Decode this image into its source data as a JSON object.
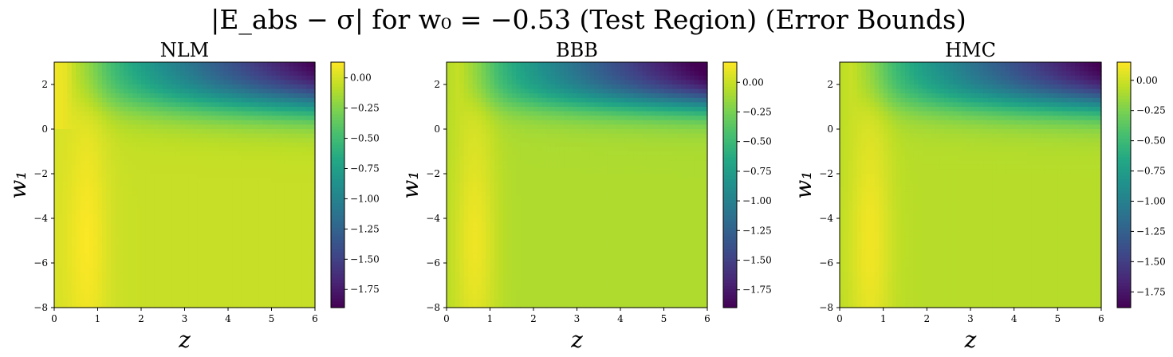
{
  "figure": {
    "suptitle": "|E_abs − σ| for w₀ = −0.53 (Test Region) (Error Bounds)"
  },
  "chart_data": [
    {
      "type": "heatmap",
      "title": "NLM",
      "xlabel": "z",
      "ylabel": "w₁",
      "xlim": [
        0,
        6
      ],
      "ylim": [
        -8,
        3
      ],
      "xticks": [
        0,
        1,
        2,
        3,
        4,
        5,
        6
      ],
      "yticks": [
        -8,
        -6,
        -4,
        -2,
        0,
        2
      ],
      "colorbar": {
        "range": [
          -1.9,
          0.13
        ],
        "ticks": [
          "0.00",
          "−0.25",
          "−0.50",
          "−0.75",
          "−1.00",
          "−1.25",
          "−1.50",
          "−1.75"
        ]
      },
      "colormap": "viridis",
      "model": {
        "base": -0.04,
        "hump_amp": 0.16,
        "hump_z": 0.75,
        "hump_sz": 0.5,
        "low_amp": 1.95,
        "low_z": 6.0,
        "low_w": 3.0,
        "low_rise": 0.55,
        "top_edge": 0.11,
        "floor": 0.0
      }
    },
    {
      "type": "heatmap",
      "title": "BBB",
      "xlabel": "z",
      "ylabel": "w₁",
      "xlim": [
        0,
        6
      ],
      "ylim": [
        -8,
        3
      ],
      "xticks": [
        0,
        1,
        2,
        3,
        4,
        5,
        6
      ],
      "yticks": [
        -8,
        -6,
        -4,
        -2,
        0,
        2
      ],
      "colorbar": {
        "range": [
          -1.9,
          0.17
        ],
        "ticks": [
          "0.00",
          "−0.25",
          "−0.50",
          "−0.75",
          "−1.00",
          "−1.25",
          "−1.50",
          "−1.75"
        ]
      },
      "colormap": "viridis",
      "model": {
        "base": -0.08,
        "hump_amp": 0.2,
        "hump_z": 0.65,
        "hump_sz": 0.5,
        "low_amp": 1.95,
        "low_z": 6.0,
        "low_w": 3.0,
        "low_rise": 0.45,
        "top_edge": 0.0,
        "floor": 0.0
      }
    },
    {
      "type": "heatmap",
      "title": "HMC",
      "xlabel": "z",
      "ylabel": "w₁",
      "xlim": [
        0,
        6
      ],
      "ylim": [
        -8,
        3
      ],
      "xticks": [
        0,
        1,
        2,
        3,
        4,
        5,
        6
      ],
      "yticks": [
        -8,
        -6,
        -4,
        -2,
        0,
        2
      ],
      "colorbar": {
        "range": [
          -1.88,
          0.15
        ],
        "ticks": [
          "0.00",
          "−0.25",
          "−0.50",
          "−0.75",
          "−1.00",
          "−1.25",
          "−1.50",
          "−1.75"
        ]
      },
      "colormap": "viridis",
      "model": {
        "base": -0.07,
        "hump_amp": 0.18,
        "hump_z": 0.7,
        "hump_sz": 0.5,
        "low_amp": 1.9,
        "low_z": 6.0,
        "low_w": 3.0,
        "low_rise": 0.5,
        "top_edge": 0.0,
        "floor": 0.0
      }
    }
  ]
}
